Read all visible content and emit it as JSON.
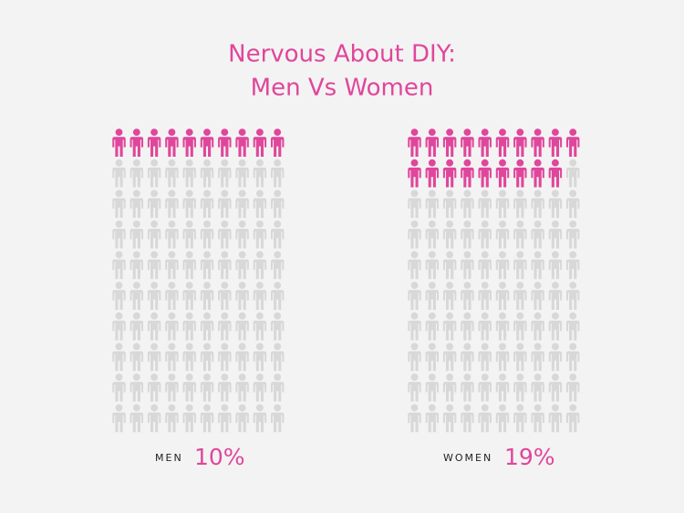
{
  "chart_data": {
    "type": "pictogram",
    "title": "Nervous About DIY:",
    "subtitle": "Men Vs Women",
    "categories": [
      "MEN",
      "WOMEN"
    ],
    "values": [
      10,
      19
    ],
    "value_labels": [
      "10%",
      "19%"
    ],
    "color": "#e0469b",
    "empty_color": "#d8d8d8"
  }
}
